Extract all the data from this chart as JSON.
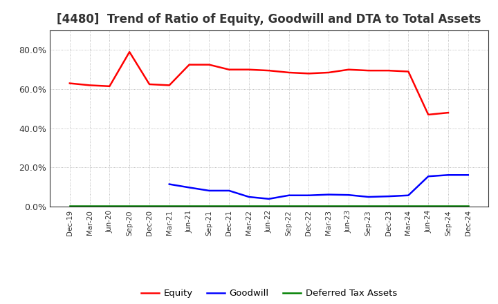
{
  "title": "[4480]  Trend of Ratio of Equity, Goodwill and DTA to Total Assets",
  "x_labels": [
    "Dec-19",
    "Mar-20",
    "Jun-20",
    "Sep-20",
    "Dec-20",
    "Mar-21",
    "Jun-21",
    "Sep-21",
    "Dec-21",
    "Mar-22",
    "Jun-22",
    "Sep-22",
    "Dec-22",
    "Mar-23",
    "Jun-23",
    "Sep-23",
    "Dec-23",
    "Mar-24",
    "Jun-24",
    "Sep-24",
    "Dec-24"
  ],
  "equity": [
    0.63,
    0.62,
    0.615,
    0.79,
    0.625,
    0.62,
    0.725,
    0.725,
    0.7,
    0.7,
    0.695,
    0.685,
    0.68,
    0.685,
    0.7,
    0.695,
    0.695,
    0.69,
    0.47,
    0.48,
    null
  ],
  "goodwill": [
    null,
    null,
    null,
    null,
    null,
    0.115,
    0.098,
    0.082,
    0.082,
    0.05,
    0.04,
    0.058,
    0.058,
    0.062,
    0.06,
    0.05,
    0.053,
    0.058,
    0.155,
    0.162,
    0.162
  ],
  "dta": [
    0.005,
    0.005,
    0.005,
    0.005,
    0.005,
    0.005,
    0.005,
    0.005,
    0.005,
    0.005,
    0.005,
    0.005,
    0.005,
    0.005,
    0.005,
    0.005,
    0.005,
    0.005,
    0.005,
    0.005,
    0.005
  ],
  "equity_color": "#FF0000",
  "goodwill_color": "#0000FF",
  "dta_color": "#008000",
  "ylim": [
    0.0,
    0.9
  ],
  "yticks": [
    0.0,
    0.2,
    0.4,
    0.6,
    0.8
  ],
  "background_color": "#FFFFFF",
  "grid_color": "#AAAAAA",
  "title_fontsize": 12,
  "title_color": "#333333"
}
